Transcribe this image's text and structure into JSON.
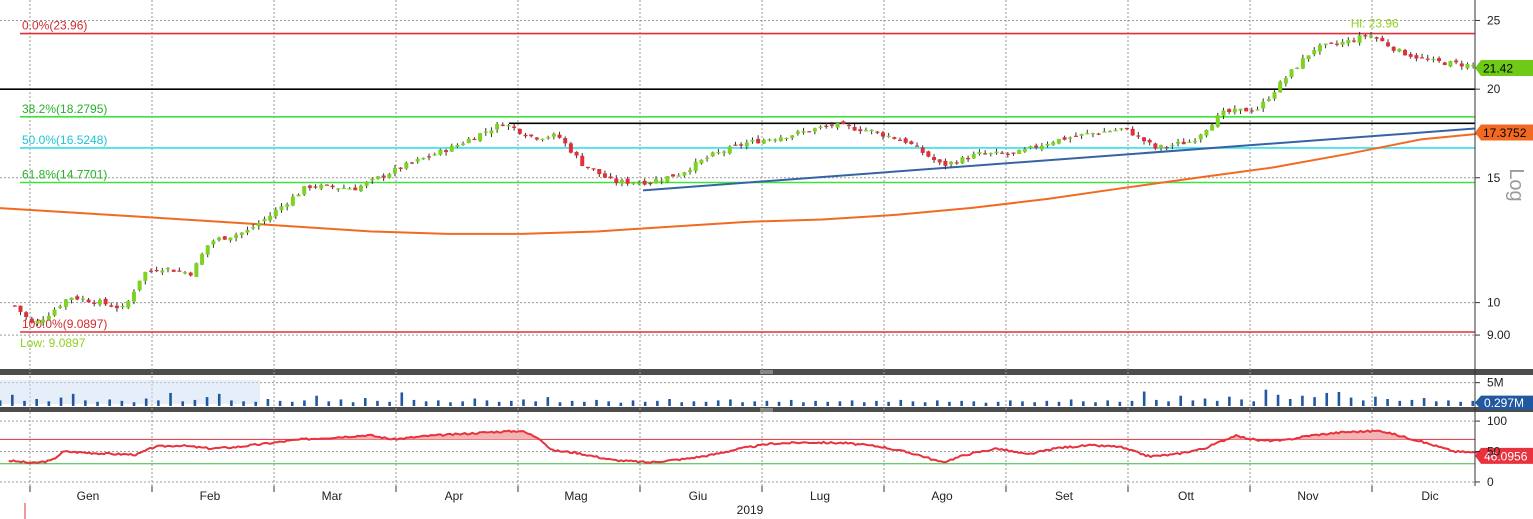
{
  "chart_data": {
    "type": "candlestick",
    "scale_label": "Log",
    "x_axis": {
      "months": [
        "Gen",
        "Feb",
        "Mar",
        "Apr",
        "Mag",
        "Giu",
        "Lug",
        "Ago",
        "Set",
        "Ott",
        "Nov",
        "Dic"
      ],
      "year": "2019"
    },
    "price_axis": {
      "ticks": [
        {
          "value": 25,
          "label": "25"
        },
        {
          "value": 20,
          "label": "20"
        },
        {
          "value": 15,
          "label": "15"
        },
        {
          "value": 10,
          "label": "10"
        },
        {
          "value": 9,
          "label": "9.00"
        }
      ],
      "range": [
        8.3,
        26.2
      ],
      "scale": "log"
    },
    "last_price": {
      "value": 21.42,
      "label": "21.42",
      "color": "#6fc917"
    },
    "trendline_tag": {
      "value": 17.3752,
      "label": "17.3752",
      "color": "#f26a22"
    },
    "fib_levels": [
      {
        "label": "0.0%(23.96)",
        "value": 23.96,
        "color": "#e0303a",
        "text_color": "#d42a30"
      },
      {
        "label": "38.2%(18.2795)",
        "value": 18.2795,
        "color": "#3fe33f",
        "text_color": "#25b225"
      },
      {
        "label": "50.0%(16.5248)",
        "value": 16.5248,
        "color": "#33e0ee",
        "text_color": "#1fc4d6"
      },
      {
        "label": "61.8%(14.7701)",
        "value": 14.7701,
        "color": "#3fe33f",
        "text_color": "#25b225"
      },
      {
        "label": "100.0%(9.0897)",
        "value": 9.0897,
        "color": "#e0303a",
        "text_color": "#d42a30"
      }
    ],
    "black_levels": [
      20.0,
      17.9
    ],
    "hi": {
      "label": "Hi: 23.96",
      "value": 23.96
    },
    "low": {
      "label": "Low: 9.0897",
      "value": 9.0897
    },
    "moving_average": {
      "color": "#f26a22",
      "values": [
        13.6,
        13.4,
        13.2,
        13.0,
        12.8,
        12.6,
        12.5,
        12.5,
        12.6,
        12.8,
        13.0,
        13.1,
        13.3,
        13.6,
        14.0,
        14.5,
        15.0,
        15.5,
        16.2,
        17.0,
        17.4
      ]
    },
    "support_trendline": {
      "color": "#3563a6",
      "start": {
        "month_index": 4.55,
        "value": 14.4
      },
      "end": {
        "month_index": 11.9,
        "value": 17.6
      }
    },
    "close_path": [
      {
        "t": -0.6,
        "v": 9.9
      },
      {
        "t": -0.45,
        "v": 9.3
      },
      {
        "t": -0.3,
        "v": 9.7
      },
      {
        "t": -0.15,
        "v": 10.2
      },
      {
        "t": 0.1,
        "v": 10.0
      },
      {
        "t": 0.3,
        "v": 9.8
      },
      {
        "t": 0.45,
        "v": 11.0
      },
      {
        "t": 0.6,
        "v": 11.2
      },
      {
        "t": 0.85,
        "v": 11.0
      },
      {
        "t": 1.0,
        "v": 12.2
      },
      {
        "t": 1.3,
        "v": 12.6
      },
      {
        "t": 1.5,
        "v": 13.3
      },
      {
        "t": 1.8,
        "v": 14.6
      },
      {
        "t": 2.2,
        "v": 14.5
      },
      {
        "t": 2.6,
        "v": 15.6
      },
      {
        "t": 3.0,
        "v": 16.6
      },
      {
        "t": 3.4,
        "v": 17.9
      },
      {
        "t": 3.65,
        "v": 17.1
      },
      {
        "t": 3.85,
        "v": 17.2
      },
      {
        "t": 4.05,
        "v": 15.7
      },
      {
        "t": 4.3,
        "v": 14.8
      },
      {
        "t": 4.6,
        "v": 14.8
      },
      {
        "t": 4.85,
        "v": 15.2
      },
      {
        "t": 5.1,
        "v": 16.1
      },
      {
        "t": 5.4,
        "v": 16.8
      },
      {
        "t": 5.8,
        "v": 17.3
      },
      {
        "t": 6.1,
        "v": 17.8
      },
      {
        "t": 6.4,
        "v": 17.5
      },
      {
        "t": 6.7,
        "v": 16.9
      },
      {
        "t": 7.0,
        "v": 15.6
      },
      {
        "t": 7.3,
        "v": 16.2
      },
      {
        "t": 7.6,
        "v": 16.2
      },
      {
        "t": 7.9,
        "v": 16.9
      },
      {
        "t": 8.2,
        "v": 17.3
      },
      {
        "t": 8.5,
        "v": 17.6
      },
      {
        "t": 8.75,
        "v": 16.5
      },
      {
        "t": 9.05,
        "v": 16.9
      },
      {
        "t": 9.3,
        "v": 18.5
      },
      {
        "t": 9.6,
        "v": 18.8
      },
      {
        "t": 9.8,
        "v": 20.6
      },
      {
        "t": 10.05,
        "v": 22.8
      },
      {
        "t": 10.35,
        "v": 23.4
      },
      {
        "t": 10.5,
        "v": 23.9
      },
      {
        "t": 10.75,
        "v": 22.6
      },
      {
        "t": 11.0,
        "v": 21.9
      },
      {
        "t": 11.35,
        "v": 21.6
      },
      {
        "t": 11.6,
        "v": 21.42
      }
    ],
    "volume": {
      "ticks": [
        {
          "value": 5,
          "label": "5M"
        }
      ],
      "range": [
        0,
        6
      ],
      "last": {
        "value": 0.297,
        "label": "0.297M",
        "color": "#2158a0"
      },
      "bars": [
        1.2,
        2.4,
        1.1,
        1.5,
        1.0,
        1.8,
        2.6,
        1.2,
        0.9,
        1.4,
        1.1,
        0.8,
        1.6,
        1.2,
        2.8,
        1.0,
        1.3,
        1.9,
        2.6,
        1.2,
        1.0,
        0.9,
        1.5,
        1.1,
        0.9,
        1.2,
        2.2,
        1.0,
        1.4,
        0.8,
        1.7,
        1.1,
        0.9,
        2.9,
        1.3,
        1.0,
        1.2,
        0.8,
        1.0,
        1.6,
        1.2,
        0.9,
        1.1,
        1.4,
        1.0,
        1.9,
        0.8,
        1.1,
        0.9,
        1.3,
        1.0,
        0.7,
        1.2,
        0.9,
        1.1,
        1.5,
        0.8,
        1.0,
        0.9,
        1.2,
        1.4,
        0.8,
        1.0,
        1.1,
        0.9,
        1.3,
        0.8,
        1.1,
        0.9,
        1.0,
        1.2,
        0.8,
        1.1,
        0.9,
        1.3,
        1.0,
        0.8,
        1.2,
        0.9,
        1.1,
        1.0,
        0.7,
        0.9,
        1.2,
        1.0,
        0.8,
        1.1,
        0.9,
        1.4,
        1.0,
        0.8,
        1.2,
        0.9,
        1.1,
        3.1,
        1.3,
        1.0,
        2.2,
        1.2,
        1.6,
        1.1,
        2.0,
        1.4,
        1.0,
        3.5,
        2.4,
        1.5,
        2.2,
        1.9,
        2.8,
        3.0,
        1.8,
        1.2,
        2.0,
        1.5,
        1.1,
        1.3,
        1.7,
        1.0,
        1.2,
        0.9,
        1.1,
        0.8,
        0.6,
        0.297
      ]
    },
    "oscillator": {
      "ticks": [
        {
          "value": 100,
          "label": "100"
        },
        {
          "value": 50,
          "label": "50"
        },
        {
          "value": 0,
          "label": "0"
        }
      ],
      "range": [
        -5,
        110
      ],
      "upper_band": 70,
      "lower_band": 30,
      "last": {
        "value": 46.0956,
        "label": "46.0956",
        "color": "#e8323d"
      },
      "values": [
        {
          "t": -0.65,
          "v": 35
        },
        {
          "t": -0.45,
          "v": 31
        },
        {
          "t": -0.3,
          "v": 35
        },
        {
          "t": -0.2,
          "v": 50
        },
        {
          "t": 0.0,
          "v": 48
        },
        {
          "t": 0.2,
          "v": 46
        },
        {
          "t": 0.4,
          "v": 45
        },
        {
          "t": 0.55,
          "v": 58
        },
        {
          "t": 0.75,
          "v": 60
        },
        {
          "t": 1.0,
          "v": 55
        },
        {
          "t": 1.2,
          "v": 57
        },
        {
          "t": 1.5,
          "v": 64
        },
        {
          "t": 1.75,
          "v": 70
        },
        {
          "t": 2.0,
          "v": 73
        },
        {
          "t": 2.3,
          "v": 77
        },
        {
          "t": 2.5,
          "v": 70
        },
        {
          "t": 2.8,
          "v": 76
        },
        {
          "t": 3.0,
          "v": 78
        },
        {
          "t": 3.3,
          "v": 82
        },
        {
          "t": 3.55,
          "v": 84
        },
        {
          "t": 3.7,
          "v": 72
        },
        {
          "t": 3.8,
          "v": 52
        },
        {
          "t": 4.0,
          "v": 48
        },
        {
          "t": 4.3,
          "v": 36
        },
        {
          "t": 4.6,
          "v": 32
        },
        {
          "t": 4.9,
          "v": 38
        },
        {
          "t": 5.1,
          "v": 44
        },
        {
          "t": 5.35,
          "v": 55
        },
        {
          "t": 5.6,
          "v": 63
        },
        {
          "t": 5.9,
          "v": 65
        },
        {
          "t": 6.2,
          "v": 64
        },
        {
          "t": 6.5,
          "v": 58
        },
        {
          "t": 6.8,
          "v": 45
        },
        {
          "t": 7.0,
          "v": 32
        },
        {
          "t": 7.2,
          "v": 45
        },
        {
          "t": 7.45,
          "v": 55
        },
        {
          "t": 7.7,
          "v": 45
        },
        {
          "t": 7.95,
          "v": 56
        },
        {
          "t": 8.2,
          "v": 60
        },
        {
          "t": 8.45,
          "v": 58
        },
        {
          "t": 8.7,
          "v": 42
        },
        {
          "t": 8.9,
          "v": 45
        },
        {
          "t": 9.15,
          "v": 55
        },
        {
          "t": 9.4,
          "v": 76
        },
        {
          "t": 9.6,
          "v": 68
        },
        {
          "t": 9.8,
          "v": 68
        },
        {
          "t": 10.0,
          "v": 76
        },
        {
          "t": 10.3,
          "v": 82
        },
        {
          "t": 10.6,
          "v": 84
        },
        {
          "t": 10.9,
          "v": 68
        },
        {
          "t": 11.2,
          "v": 50
        },
        {
          "t": 11.5,
          "v": 47
        },
        {
          "t": 11.7,
          "v": 46.0956
        }
      ],
      "fill_color": "#f3b4b4"
    },
    "grid": true
  }
}
